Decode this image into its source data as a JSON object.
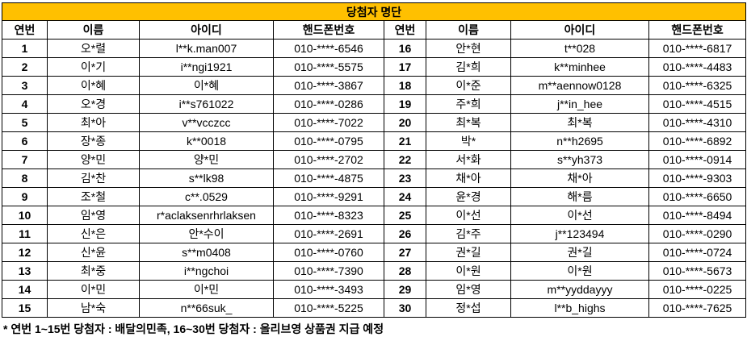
{
  "table": {
    "title": "당첨자 명단",
    "header": [
      "연번",
      "이름",
      "아이디",
      "핸드폰번호",
      "연번",
      "이름",
      "아이디",
      "핸드폰번호"
    ],
    "rows": [
      [
        1,
        "오*렬",
        "l**k.man007",
        "010-****-6546",
        16,
        "안*현",
        "t**028",
        "010-****-6817"
      ],
      [
        2,
        "이*기",
        "i**ngi1921",
        "010-****-5575",
        17,
        "김*희",
        "k**minhee",
        "010-****-4483"
      ],
      [
        3,
        "이*혜",
        "이*혜",
        "010-****-3867",
        18,
        "이*준",
        "m**aennow0128",
        "010-****-6325"
      ],
      [
        4,
        "오*경",
        "i**s761022",
        "010-****-0286",
        19,
        "주*희",
        "j**in_hee",
        "010-****-4515"
      ],
      [
        5,
        "최*아",
        "v**vcczcc",
        "010-****-7022",
        20,
        "최*복",
        "최*복",
        "010-****-4310"
      ],
      [
        6,
        "장*종",
        "k**0018",
        "010-****-0795",
        21,
        "박*",
        "n**h2695",
        "010-****-6892"
      ],
      [
        7,
        "양*민",
        "양*민",
        "010-****-2702",
        22,
        "서*화",
        "s**yh373",
        "010-****-0914"
      ],
      [
        8,
        "김*찬",
        "s**lk98",
        "010-****-4875",
        23,
        "채*아",
        "채*아",
        "010-****-9303"
      ],
      [
        9,
        "조*철",
        "c**.0529",
        "010-****-9291",
        24,
        "윤*경",
        "해*름",
        "010-****-6650"
      ],
      [
        10,
        "임*영",
        "r*aclaksenrhrlaksen",
        "010-****-8323",
        25,
        "이*선",
        "이*선",
        "010-****-8494"
      ],
      [
        11,
        "신*은",
        "안*수이",
        "010-****-2691",
        26,
        "김*주",
        "j**123494",
        "010-****-0290"
      ],
      [
        12,
        "신*윤",
        "s**m0408",
        "010-****-0760",
        27,
        "권*길",
        "권*길",
        "010-****-0724"
      ],
      [
        13,
        "최*중",
        "i**ngchoi",
        "010-****-7390",
        28,
        "이*원",
        "이*원",
        "010-****-5673"
      ],
      [
        14,
        "이*민",
        "이*민",
        "010-****-3493",
        29,
        "임*영",
        "m**yyddayyy",
        "010-****-0225"
      ],
      [
        15,
        "남*숙",
        "n**66suk_",
        "010-****-5225",
        30,
        "정*섭",
        "l**b_highs",
        "010-****-7625"
      ]
    ]
  },
  "note": "* 연번 1~15번 당첨자 : 배달의민족, 16~30번 당첨자 : 올리브영 상품권 지급 예정"
}
